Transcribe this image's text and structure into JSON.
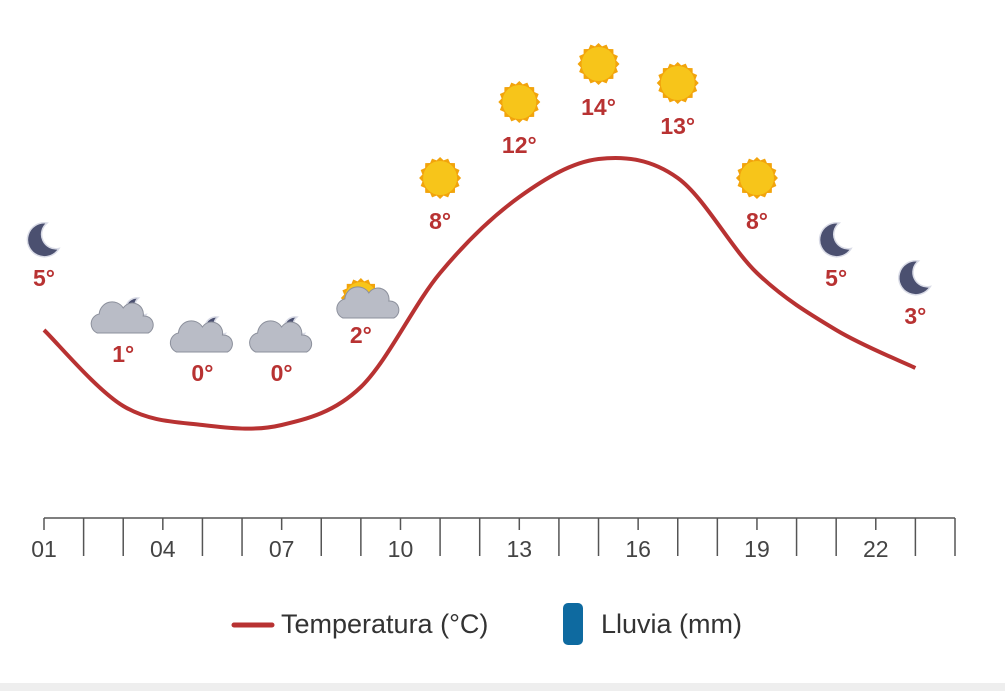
{
  "chart_data": {
    "type": "line",
    "x": [
      1,
      3,
      5,
      7,
      9,
      11,
      13,
      15,
      17,
      19,
      21,
      23
    ],
    "xlim": [
      1,
      24
    ],
    "xticks": [
      {
        "value": 1,
        "label": "01"
      },
      {
        "value": 2,
        "label": null
      },
      {
        "value": 3,
        "label": null
      },
      {
        "value": 4,
        "label": "04"
      },
      {
        "value": 5,
        "label": null
      },
      {
        "value": 6,
        "label": null
      },
      {
        "value": 7,
        "label": "07"
      },
      {
        "value": 8,
        "label": null
      },
      {
        "value": 9,
        "label": null
      },
      {
        "value": 10,
        "label": "10"
      },
      {
        "value": 11,
        "label": null
      },
      {
        "value": 12,
        "label": null
      },
      {
        "value": 13,
        "label": "13"
      },
      {
        "value": 14,
        "label": null
      },
      {
        "value": 15,
        "label": null
      },
      {
        "value": 16,
        "label": "16"
      },
      {
        "value": 17,
        "label": null
      },
      {
        "value": 18,
        "label": null
      },
      {
        "value": 19,
        "label": "19"
      },
      {
        "value": 20,
        "label": null
      },
      {
        "value": 21,
        "label": null
      },
      {
        "value": 22,
        "label": "22"
      },
      {
        "value": 23,
        "label": null
      },
      {
        "value": 24,
        "label": null
      }
    ],
    "series": [
      {
        "name": "Temperatura (°C)",
        "color": "#b83232",
        "values": [
          5,
          1,
          0,
          0,
          2,
          8,
          12,
          14,
          13,
          8,
          5,
          3
        ],
        "value_labels": [
          "5°",
          "1°",
          "0°",
          "0°",
          "2°",
          "8°",
          "12°",
          "14°",
          "13°",
          "8°",
          "5°",
          "3°"
        ]
      },
      {
        "name": "Lluvia (mm)",
        "color": "#0e6aa0",
        "values": [
          0,
          0,
          0,
          0,
          0,
          0,
          0,
          0,
          0,
          0,
          0,
          0
        ]
      }
    ]
  }
}
